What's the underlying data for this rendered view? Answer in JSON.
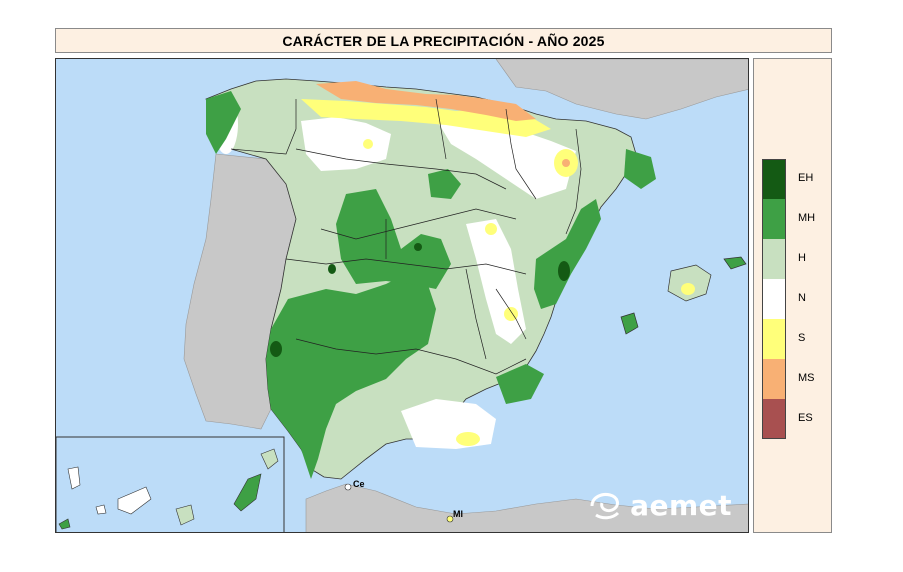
{
  "title": "CARÁCTER DE LA PRECIPITACIÓN - AÑO 2025",
  "legend": [
    {
      "code": "EH",
      "color": "#145a14"
    },
    {
      "code": "MH",
      "color": "#3ea045"
    },
    {
      "code": "H",
      "color": "#c8e0c0"
    },
    {
      "code": "N",
      "color": "#ffffff"
    },
    {
      "code": "S",
      "color": "#ffff7a"
    },
    {
      "code": "MS",
      "color": "#f8b074"
    },
    {
      "code": "ES",
      "color": "#a85050"
    }
  ],
  "map": {
    "sea_color": "#bcdcf8",
    "land_other_color": "#c8c8c8",
    "labels": {
      "ceuta": "Ce",
      "melilla": "Ml"
    }
  },
  "logo": {
    "text": "aemet"
  }
}
